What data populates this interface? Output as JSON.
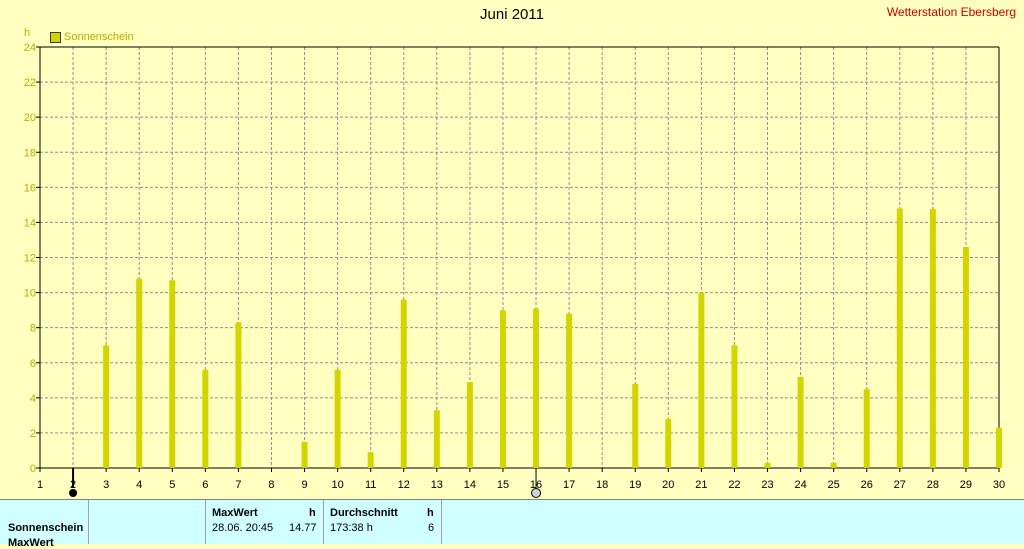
{
  "header": {
    "title": "Juni 2011",
    "station": "Wetterstation Ebersberg",
    "unit": "h"
  },
  "legend": {
    "label": "Sonnenschein"
  },
  "colors": {
    "background": "#ffffc0",
    "bar": "#d4d400",
    "grid": "#909090",
    "tick_label": "#b8b000",
    "station": "#d00000",
    "panel": "#d0ffff"
  },
  "chart_data": {
    "type": "bar",
    "title": "Juni 2011",
    "ylabel": "h",
    "ylim": [
      0,
      24
    ],
    "yticks": [
      0,
      2,
      4,
      6,
      8,
      10,
      12,
      14,
      16,
      18,
      20,
      22,
      24
    ],
    "xlim": [
      1,
      30
    ],
    "xticks": [
      1,
      2,
      3,
      4,
      5,
      6,
      7,
      8,
      9,
      10,
      11,
      12,
      13,
      14,
      15,
      16,
      17,
      18,
      19,
      20,
      21,
      22,
      23,
      24,
      25,
      26,
      27,
      28,
      29,
      30
    ],
    "grid": true,
    "legend_position": "top-left",
    "series": [
      {
        "name": "Sonnenschein",
        "x": [
          3,
          4,
          5,
          6,
          7,
          9,
          10,
          11,
          12,
          13,
          14,
          15,
          16,
          17,
          19,
          20,
          21,
          22,
          23,
          24,
          25,
          26,
          27,
          28,
          29,
          30
        ],
        "values": [
          7.0,
          10.8,
          10.7,
          5.6,
          8.3,
          1.5,
          5.6,
          0.9,
          9.6,
          3.3,
          4.9,
          9.0,
          9.1,
          8.8,
          4.8,
          2.8,
          10.0,
          7.0,
          0.3,
          5.2,
          0.3,
          4.5,
          14.8,
          14.77,
          12.6,
          2.3
        ]
      }
    ]
  },
  "footer": {
    "row1_label": "Sonnenschein",
    "row2_label_partial": "MaxWert",
    "max_header": "MaxWert",
    "max_unit": "h",
    "max_datetime": "28.06.  20:45",
    "max_value": "14.77",
    "avg_header": "Durchschnitt",
    "avg_unit": "h",
    "avg_total": "173:38 h",
    "avg_value": "6"
  }
}
